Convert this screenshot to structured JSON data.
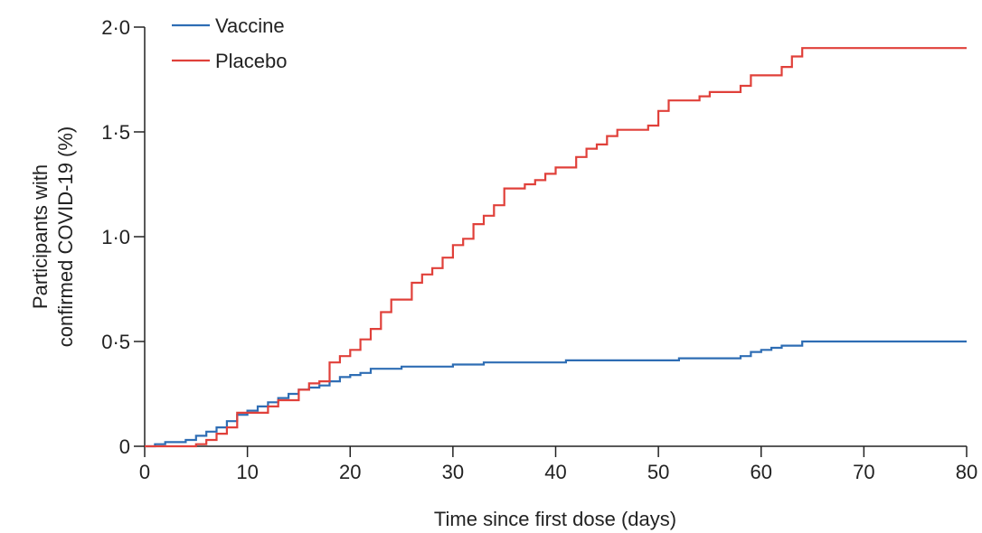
{
  "chart_data": {
    "type": "line",
    "step": true,
    "xlabel": "Time since first dose (days)",
    "ylabel_lines": [
      "Participants with",
      "confirmed COVID-19 (%)"
    ],
    "xlim": [
      0,
      80
    ],
    "ylim": [
      0,
      2.0
    ],
    "x_ticks": [
      0,
      10,
      20,
      30,
      40,
      50,
      60,
      70,
      80
    ],
    "x_tick_labels": [
      "0",
      "10",
      "20",
      "30",
      "40",
      "50",
      "60",
      "70",
      "80"
    ],
    "y_ticks": [
      0,
      0.5,
      1.0,
      1.5,
      2.0
    ],
    "y_tick_labels": [
      "0",
      "0·5",
      "1·0",
      "1·5",
      "2·0"
    ],
    "grid": false,
    "legend_position": "top-left",
    "series": [
      {
        "name": "Vaccine",
        "color": "#2e6db4",
        "points": [
          [
            0,
            0
          ],
          [
            1,
            0.01
          ],
          [
            2,
            0.02
          ],
          [
            4,
            0.03
          ],
          [
            5,
            0.05
          ],
          [
            6,
            0.07
          ],
          [
            7,
            0.09
          ],
          [
            8,
            0.12
          ],
          [
            9,
            0.15
          ],
          [
            10,
            0.17
          ],
          [
            11,
            0.19
          ],
          [
            12,
            0.21
          ],
          [
            13,
            0.23
          ],
          [
            14,
            0.25
          ],
          [
            15,
            0.27
          ],
          [
            16,
            0.28
          ],
          [
            17,
            0.29
          ],
          [
            18,
            0.31
          ],
          [
            19,
            0.33
          ],
          [
            20,
            0.34
          ],
          [
            21,
            0.35
          ],
          [
            22,
            0.37
          ],
          [
            23,
            0.37
          ],
          [
            25,
            0.38
          ],
          [
            30,
            0.39
          ],
          [
            33,
            0.4
          ],
          [
            41,
            0.41
          ],
          [
            52,
            0.42
          ],
          [
            58,
            0.43
          ],
          [
            59,
            0.45
          ],
          [
            60,
            0.46
          ],
          [
            61,
            0.47
          ],
          [
            62,
            0.48
          ],
          [
            64,
            0.5
          ],
          [
            80,
            0.5
          ]
        ]
      },
      {
        "name": "Placebo",
        "color": "#e0403a",
        "points": [
          [
            0,
            0
          ],
          [
            5,
            0.01
          ],
          [
            6,
            0.03
          ],
          [
            7,
            0.06
          ],
          [
            8,
            0.09
          ],
          [
            9,
            0.16
          ],
          [
            12,
            0.19
          ],
          [
            13,
            0.22
          ],
          [
            15,
            0.27
          ],
          [
            16,
            0.3
          ],
          [
            17,
            0.31
          ],
          [
            18,
            0.4
          ],
          [
            19,
            0.43
          ],
          [
            20,
            0.46
          ],
          [
            21,
            0.51
          ],
          [
            22,
            0.56
          ],
          [
            23,
            0.64
          ],
          [
            24,
            0.7
          ],
          [
            26,
            0.78
          ],
          [
            27,
            0.82
          ],
          [
            28,
            0.85
          ],
          [
            29,
            0.9
          ],
          [
            30,
            0.96
          ],
          [
            31,
            0.99
          ],
          [
            32,
            1.06
          ],
          [
            33,
            1.1
          ],
          [
            34,
            1.15
          ],
          [
            35,
            1.23
          ],
          [
            37,
            1.25
          ],
          [
            38,
            1.27
          ],
          [
            39,
            1.3
          ],
          [
            40,
            1.33
          ],
          [
            42,
            1.38
          ],
          [
            43,
            1.42
          ],
          [
            44,
            1.44
          ],
          [
            45,
            1.48
          ],
          [
            46,
            1.51
          ],
          [
            49,
            1.53
          ],
          [
            50,
            1.6
          ],
          [
            51,
            1.65
          ],
          [
            54,
            1.67
          ],
          [
            55,
            1.69
          ],
          [
            58,
            1.72
          ],
          [
            59,
            1.77
          ],
          [
            62,
            1.81
          ],
          [
            63,
            1.86
          ],
          [
            64,
            1.9
          ],
          [
            80,
            1.9
          ]
        ]
      }
    ]
  }
}
